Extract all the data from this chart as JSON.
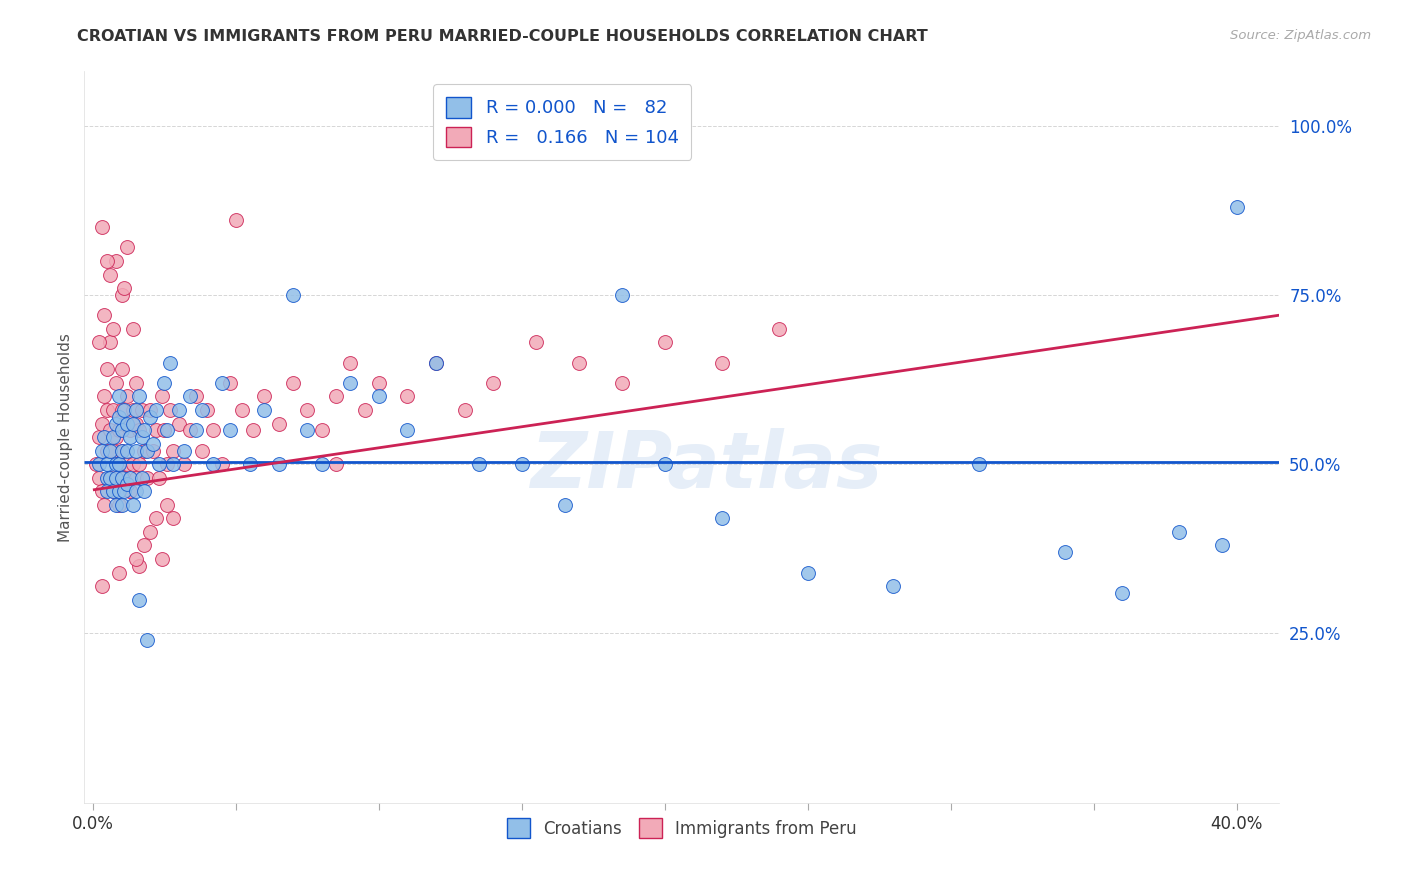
{
  "title": "CROATIAN VS IMMIGRANTS FROM PERU MARRIED-COUPLE HOUSEHOLDS CORRELATION CHART",
  "source": "Source: ZipAtlas.com",
  "ylabel": "Married-couple Households",
  "y_tick_positions": [
    0.0,
    0.25,
    0.5,
    0.75,
    1.0
  ],
  "y_tick_labels": [
    "",
    "25.0%",
    "50.0%",
    "75.0%",
    "100.0%"
  ],
  "xlim": [
    -0.003,
    0.415
  ],
  "ylim": [
    0.0,
    1.08
  ],
  "x_ticks": [
    0.0,
    0.05,
    0.1,
    0.15,
    0.2,
    0.25,
    0.3,
    0.35,
    0.4
  ],
  "x_tick_labels": [
    "0.0%",
    "",
    "",
    "",
    "",
    "",
    "",
    "",
    "40.0%"
  ],
  "legend_R1": "0.000",
  "legend_N1": "82",
  "legend_R2": "0.166",
  "legend_N2": "104",
  "blue_color": "#92bfe8",
  "pink_color": "#f2aab8",
  "line_blue": "#1155cc",
  "line_pink": "#cc2255",
  "watermark": "ZIPatlas",
  "background_color": "#ffffff",
  "legend_label1": "Croatians",
  "legend_label2": "Immigrants from Peru",
  "blue_line_y": 0.503,
  "peru_line_x0": 0.0,
  "peru_line_y0": 0.462,
  "peru_line_x1": 0.415,
  "peru_line_y1": 0.72,
  "croatians_x": [
    0.002,
    0.003,
    0.004,
    0.005,
    0.005,
    0.005,
    0.006,
    0.006,
    0.007,
    0.007,
    0.008,
    0.008,
    0.008,
    0.008,
    0.009,
    0.009,
    0.009,
    0.009,
    0.01,
    0.01,
    0.01,
    0.01,
    0.011,
    0.011,
    0.012,
    0.012,
    0.012,
    0.013,
    0.013,
    0.014,
    0.014,
    0.015,
    0.015,
    0.015,
    0.016,
    0.017,
    0.017,
    0.018,
    0.018,
    0.019,
    0.02,
    0.021,
    0.022,
    0.023,
    0.025,
    0.026,
    0.027,
    0.028,
    0.03,
    0.032,
    0.034,
    0.036,
    0.038,
    0.042,
    0.045,
    0.048,
    0.055,
    0.06,
    0.065,
    0.07,
    0.075,
    0.08,
    0.09,
    0.1,
    0.11,
    0.12,
    0.135,
    0.15,
    0.165,
    0.185,
    0.2,
    0.22,
    0.25,
    0.28,
    0.31,
    0.34,
    0.36,
    0.38,
    0.395,
    0.4,
    0.016,
    0.019
  ],
  "croatians_y": [
    0.5,
    0.52,
    0.54,
    0.5,
    0.48,
    0.46,
    0.52,
    0.48,
    0.54,
    0.46,
    0.56,
    0.5,
    0.48,
    0.44,
    0.6,
    0.57,
    0.5,
    0.46,
    0.52,
    0.48,
    0.55,
    0.44,
    0.58,
    0.46,
    0.56,
    0.52,
    0.47,
    0.54,
    0.48,
    0.56,
    0.44,
    0.58,
    0.52,
    0.46,
    0.6,
    0.54,
    0.48,
    0.55,
    0.46,
    0.52,
    0.57,
    0.53,
    0.58,
    0.5,
    0.62,
    0.55,
    0.65,
    0.5,
    0.58,
    0.52,
    0.6,
    0.55,
    0.58,
    0.5,
    0.62,
    0.55,
    0.5,
    0.58,
    0.5,
    0.75,
    0.55,
    0.5,
    0.62,
    0.6,
    0.55,
    0.65,
    0.5,
    0.5,
    0.44,
    0.75,
    0.5,
    0.42,
    0.34,
    0.32,
    0.5,
    0.37,
    0.31,
    0.4,
    0.38,
    0.88,
    0.3,
    0.24
  ],
  "peru_x": [
    0.001,
    0.002,
    0.002,
    0.003,
    0.003,
    0.004,
    0.004,
    0.005,
    0.005,
    0.005,
    0.006,
    0.006,
    0.006,
    0.007,
    0.007,
    0.007,
    0.008,
    0.008,
    0.008,
    0.009,
    0.009,
    0.009,
    0.01,
    0.01,
    0.01,
    0.011,
    0.011,
    0.012,
    0.012,
    0.013,
    0.013,
    0.014,
    0.014,
    0.015,
    0.015,
    0.015,
    0.016,
    0.016,
    0.017,
    0.018,
    0.019,
    0.02,
    0.021,
    0.022,
    0.023,
    0.024,
    0.025,
    0.026,
    0.027,
    0.028,
    0.03,
    0.032,
    0.034,
    0.036,
    0.038,
    0.04,
    0.042,
    0.045,
    0.048,
    0.052,
    0.056,
    0.06,
    0.065,
    0.07,
    0.075,
    0.08,
    0.085,
    0.09,
    0.095,
    0.1,
    0.11,
    0.12,
    0.13,
    0.14,
    0.155,
    0.17,
    0.185,
    0.2,
    0.22,
    0.24,
    0.004,
    0.006,
    0.008,
    0.01,
    0.012,
    0.014,
    0.016,
    0.018,
    0.02,
    0.022,
    0.024,
    0.026,
    0.028,
    0.002,
    0.003,
    0.005,
    0.007,
    0.011,
    0.013,
    0.003,
    0.009,
    0.015,
    0.05,
    0.085
  ],
  "peru_y": [
    0.5,
    0.54,
    0.48,
    0.56,
    0.46,
    0.6,
    0.44,
    0.58,
    0.52,
    0.64,
    0.48,
    0.55,
    0.68,
    0.52,
    0.58,
    0.46,
    0.54,
    0.48,
    0.62,
    0.55,
    0.5,
    0.44,
    0.58,
    0.52,
    0.64,
    0.56,
    0.48,
    0.6,
    0.5,
    0.55,
    0.46,
    0.58,
    0.5,
    0.62,
    0.56,
    0.48,
    0.55,
    0.5,
    0.58,
    0.52,
    0.48,
    0.58,
    0.52,
    0.55,
    0.48,
    0.6,
    0.55,
    0.5,
    0.58,
    0.52,
    0.56,
    0.5,
    0.55,
    0.6,
    0.52,
    0.58,
    0.55,
    0.5,
    0.62,
    0.58,
    0.55,
    0.6,
    0.56,
    0.62,
    0.58,
    0.55,
    0.6,
    0.65,
    0.58,
    0.62,
    0.6,
    0.65,
    0.58,
    0.62,
    0.68,
    0.65,
    0.62,
    0.68,
    0.65,
    0.7,
    0.72,
    0.78,
    0.8,
    0.75,
    0.82,
    0.7,
    0.35,
    0.38,
    0.4,
    0.42,
    0.36,
    0.44,
    0.42,
    0.68,
    0.85,
    0.8,
    0.7,
    0.76,
    0.46,
    0.32,
    0.34,
    0.36,
    0.86,
    0.5
  ]
}
